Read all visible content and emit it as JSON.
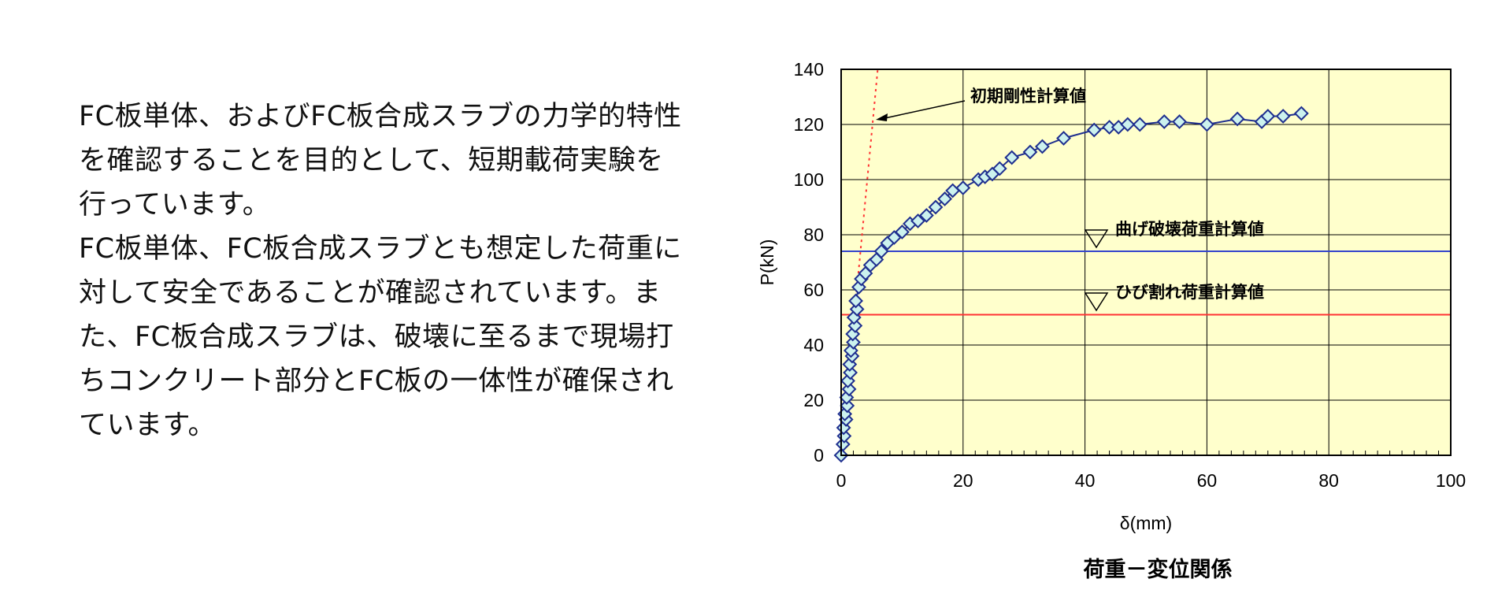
{
  "description": {
    "paragraphs": [
      [
        "FC板単体、およびFC板合成スラブの力学的特性",
        "を確認することを目的として、短期載荷実験を",
        "行っています。"
      ],
      [
        "FC板単体、FC板合成スラブとも想定した荷重に",
        "対して安全であることが確認されています。ま",
        "た、FC板合成スラブは、破壊に至るまで現場打",
        "ちコンクリート部分とFC板の一体性が確保され",
        "ています。"
      ]
    ]
  },
  "chart_data": {
    "type": "scatter",
    "caption": "荷重－変位関係",
    "xlabel": "δ(mm)",
    "ylabel": "P(kN)",
    "xlim": [
      0,
      100
    ],
    "ylim": [
      0,
      140
    ],
    "xticks": [
      0,
      20,
      40,
      60,
      80,
      100
    ],
    "yticks": [
      0,
      20,
      40,
      60,
      80,
      100,
      120,
      140
    ],
    "grid": true,
    "plot_background": "#ffffcc",
    "series": [
      {
        "marker": "diamond",
        "color": "#1f2f8f",
        "x": [
          0,
          0.3,
          0.5,
          0.4,
          0.8,
          0.6,
          1.0,
          0.9,
          1.3,
          1.1,
          1.5,
          1.4,
          1.8,
          1.6,
          2.0,
          1.9,
          2.3,
          2.1,
          2.6,
          2.4,
          2.9,
          3.3,
          4.0,
          4.8,
          5.8,
          6.6,
          7.6,
          8.7,
          10.0,
          11.3,
          12.6,
          14.0,
          15.5,
          17.0,
          18.3,
          20.0,
          22.5,
          23.6,
          24.8,
          26.0,
          28.0,
          31.0,
          33.0,
          36.5,
          41.5,
          44.0,
          45.5,
          47.0,
          49.0,
          53.0,
          55.5,
          60.0,
          65.0,
          69.0,
          70.0,
          72.5,
          75.5
        ],
        "y": [
          0,
          4,
          7,
          10,
          13,
          15,
          18,
          21,
          24,
          27,
          30,
          33,
          36,
          38,
          41,
          44,
          47,
          50,
          53,
          56,
          61,
          64,
          66,
          69,
          71,
          74,
          77,
          79,
          81,
          84,
          85,
          87,
          90,
          93,
          96,
          97,
          100,
          101,
          102,
          104,
          108,
          110,
          112,
          115,
          118,
          119,
          119,
          120,
          120,
          121,
          121,
          120,
          122,
          121,
          123,
          123,
          124
        ]
      },
      {
        "name": "初期剛性計算値",
        "type": "line",
        "style": "dotted",
        "color": "#ff3333",
        "x": [
          0,
          6.0
        ],
        "y": [
          0,
          140
        ]
      },
      {
        "name": "曲げ破壊荷重計算値",
        "type": "hline",
        "color": "#3344cc",
        "y": 74
      },
      {
        "name": "ひび割れ荷重計算値",
        "type": "hline",
        "color": "#ff3333",
        "y": 51
      }
    ],
    "annotations": [
      {
        "text": "初期剛性計算値",
        "at_x": 5.5,
        "at_y": 122
      },
      {
        "text": "曲げ破壊荷重計算値",
        "marker": "open-triangle-down"
      },
      {
        "text": "ひび割れ荷重計算値",
        "marker": "open-triangle-down"
      }
    ]
  }
}
